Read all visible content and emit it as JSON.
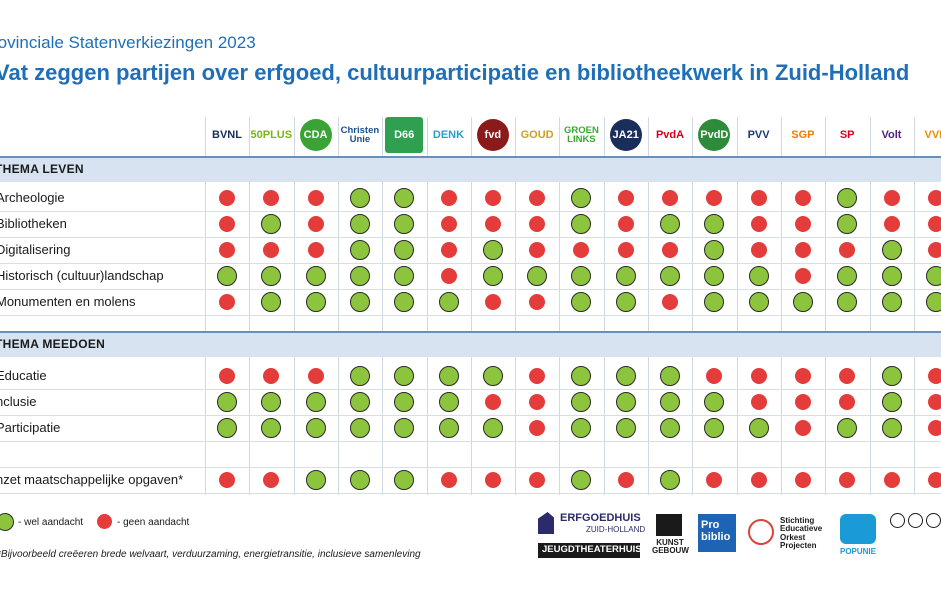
{
  "header": {
    "subtitle": "rovinciale Statenverkiezingen 2023",
    "title": "Vat zeggen partijen over erfgoed, cultuurparticipatie en bibliotheekwerk in Zuid-Holland"
  },
  "parties": [
    {
      "name": "BVNL",
      "label": "BVNL",
      "color": "#1a2e5a",
      "style": "text"
    },
    {
      "name": "50PLUS",
      "label": "50PLUS",
      "color": "#7ab51d",
      "style": "text"
    },
    {
      "name": "CDA",
      "label": "CDA",
      "color": "#3aa335",
      "style": "round"
    },
    {
      "name": "ChristenUnie",
      "label": "Christen Unie",
      "color": "#1b4f8a",
      "style": "text"
    },
    {
      "name": "D66",
      "label": "D66",
      "color": "#2ea04f",
      "style": "tile"
    },
    {
      "name": "DENK",
      "label": "DENK",
      "color": "#27a0c8",
      "style": "text"
    },
    {
      "name": "FvD",
      "label": "fvd",
      "color": "#8b1a1a",
      "style": "round"
    },
    {
      "name": "GOUD",
      "label": "GOUD",
      "color": "#c9a02b",
      "style": "text"
    },
    {
      "name": "GroenLinks",
      "label": "GROEN LINKS",
      "color": "#39a935",
      "style": "text"
    },
    {
      "name": "JA21",
      "label": "JA21",
      "color": "#1a2e5a",
      "style": "round"
    },
    {
      "name": "PvdA",
      "label": "PvdA",
      "color": "#d6001c",
      "style": "text"
    },
    {
      "name": "PvdD",
      "label": "PvdD",
      "color": "#2e8b3a",
      "style": "round"
    },
    {
      "name": "PVV",
      "label": "PVV",
      "color": "#1a3a7a",
      "style": "text"
    },
    {
      "name": "SGP",
      "label": "SGP",
      "color": "#f07d00",
      "style": "text"
    },
    {
      "name": "SP",
      "label": "SP",
      "color": "#e3001b",
      "style": "text"
    },
    {
      "name": "Volt",
      "label": "Volt",
      "color": "#502379",
      "style": "text"
    },
    {
      "name": "VVD",
      "label": "VVD",
      "color": "#f08c00",
      "style": "text"
    }
  ],
  "sections": [
    {
      "title": "THEMA LEVEN",
      "rows": [
        {
          "label": "Archeologie",
          "values": [
            "geen",
            "geen",
            "geen",
            "wel",
            "wel",
            "geen",
            "geen",
            "geen",
            "wel",
            "geen",
            "geen",
            "geen",
            "geen",
            "geen",
            "wel",
            "geen",
            "geen"
          ]
        },
        {
          "label": "Bibliotheken",
          "values": [
            "geen",
            "wel",
            "geen",
            "wel",
            "wel",
            "geen",
            "geen",
            "geen",
            "wel",
            "geen",
            "wel",
            "wel",
            "geen",
            "geen",
            "wel",
            "geen",
            "geen"
          ]
        },
        {
          "label": "Digitalisering",
          "values": [
            "geen",
            "geen",
            "geen",
            "wel",
            "wel",
            "geen",
            "wel",
            "geen",
            "geen",
            "geen",
            "geen",
            "wel",
            "geen",
            "geen",
            "geen",
            "wel",
            "geen"
          ]
        },
        {
          "label": "Historisch (cultuur)landschap",
          "values": [
            "wel",
            "wel",
            "wel",
            "wel",
            "wel",
            "geen",
            "wel",
            "wel",
            "wel",
            "wel",
            "wel",
            "wel",
            "wel",
            "geen",
            "wel",
            "wel",
            "wel"
          ]
        },
        {
          "label": "Monumenten en molens",
          "values": [
            "geen",
            "wel",
            "wel",
            "wel",
            "wel",
            "wel",
            "geen",
            "geen",
            "wel",
            "wel",
            "geen",
            "wel",
            "wel",
            "wel",
            "wel",
            "wel",
            "wel"
          ]
        }
      ]
    },
    {
      "title": "THEMA MEEDOEN",
      "rows": [
        {
          "label": "Educatie",
          "values": [
            "geen",
            "geen",
            "geen",
            "wel",
            "wel",
            "wel",
            "wel",
            "geen",
            "wel",
            "wel",
            "wel",
            "geen",
            "geen",
            "geen",
            "geen",
            "wel",
            "geen"
          ]
        },
        {
          "label": "nclusie",
          "values": [
            "wel",
            "wel",
            "wel",
            "wel",
            "wel",
            "wel",
            "geen",
            "geen",
            "wel",
            "wel",
            "wel",
            "wel",
            "geen",
            "geen",
            "geen",
            "wel",
            "geen"
          ]
        },
        {
          "label": "Participatie",
          "values": [
            "wel",
            "wel",
            "wel",
            "wel",
            "wel",
            "wel",
            "wel",
            "geen",
            "wel",
            "wel",
            "wel",
            "wel",
            "wel",
            "geen",
            "wel",
            "wel",
            "geen"
          ]
        },
        {
          "label": "",
          "values": []
        },
        {
          "label": "nzet maatschappelijke opgaven*",
          "values": [
            "geen",
            "geen",
            "wel",
            "wel",
            "wel",
            "geen",
            "geen",
            "geen",
            "wel",
            "geen",
            "wel",
            "geen",
            "geen",
            "geen",
            "geen",
            "geen",
            "geen"
          ]
        }
      ]
    }
  ],
  "legend": {
    "wel": "- wel aandacht",
    "geen": "- geen aandacht",
    "wel_color": "#8cc43d",
    "geen_color": "#e43b3b"
  },
  "footnote": "Bijvoorbeeld creëeren brede welvaart, verduurzaming, energietransitie, inclusieve samenleving",
  "sponsors": {
    "erfgoedhuis": "ERFGOEDHUIS",
    "erfgoedhuis_sub": "ZUID-HOLLAND",
    "jeugdtheaterhuis": "JEUGDTHEATERHUIS",
    "kunstgebouw": "KUNST GEBOUW",
    "probiblio": "Pro biblio",
    "sepo": "Stichting Educatieve Orkest Projecten",
    "popunie": "POPUNIE"
  }
}
